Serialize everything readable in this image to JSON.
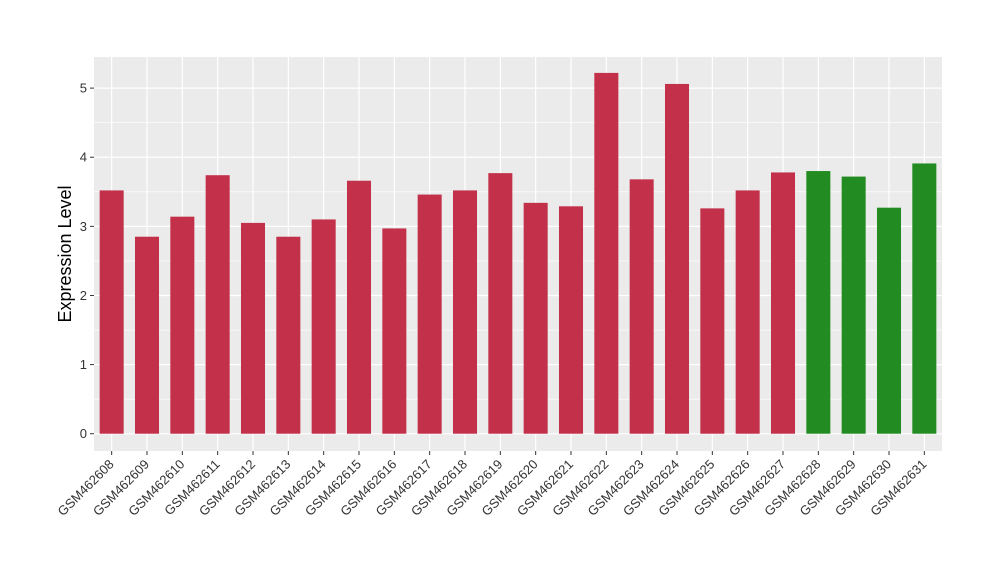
{
  "chart_data": {
    "type": "bar",
    "ylabel": "Expression Level",
    "xlabel": "",
    "ylim": [
      -0.25,
      5.45
    ],
    "yticks": [
      0,
      1,
      2,
      3,
      4,
      5
    ],
    "grid": true,
    "legend": "none",
    "colors": {
      "groupA": "#c3304a",
      "groupB": "#228b22",
      "panel": "#ebebeb",
      "grid": "#ffffff"
    },
    "categories": [
      "GSM462608",
      "GSM462609",
      "GSM462610",
      "GSM462611",
      "GSM462612",
      "GSM462613",
      "GSM462614",
      "GSM462615",
      "GSM462616",
      "GSM462617",
      "GSM462618",
      "GSM462619",
      "GSM462620",
      "GSM462621",
      "GSM462622",
      "GSM462623",
      "GSM462624",
      "GSM462625",
      "GSM462626",
      "GSM462627",
      "GSM462628",
      "GSM462629",
      "GSM462630",
      "GSM462631"
    ],
    "values": [
      3.52,
      2.85,
      3.14,
      3.74,
      3.05,
      2.85,
      3.1,
      3.66,
      2.97,
      3.46,
      3.52,
      3.77,
      3.34,
      3.29,
      5.22,
      3.68,
      5.06,
      3.26,
      3.52,
      3.78,
      3.8,
      3.72,
      3.27,
      3.91
    ],
    "groups": [
      "A",
      "A",
      "A",
      "A",
      "A",
      "A",
      "A",
      "A",
      "A",
      "A",
      "A",
      "A",
      "A",
      "A",
      "A",
      "A",
      "A",
      "A",
      "A",
      "A",
      "B",
      "B",
      "B",
      "B"
    ]
  }
}
